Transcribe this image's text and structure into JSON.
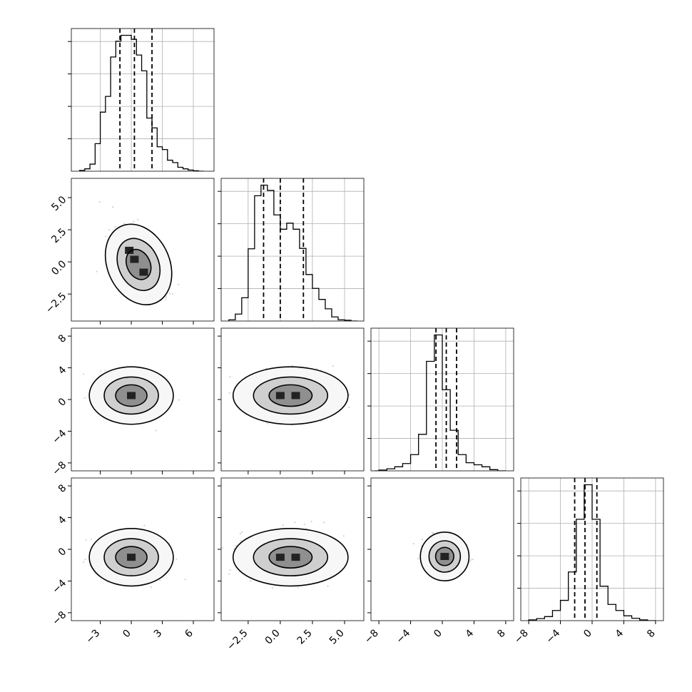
{
  "chart_data": {
    "type": "corner",
    "parameters": 4,
    "grid": true,
    "axes": [
      {
        "xlim": [
          -5.8,
          8.0
        ],
        "xticks": [
          -3,
          0,
          3,
          6
        ],
        "xtick_labels": [
          "−3",
          "0",
          "3",
          "6"
        ]
      },
      {
        "xlim": [
          -4.6,
          6.5
        ],
        "xticks": [
          -2.5,
          0.0,
          2.5,
          5.0
        ],
        "xtick_labels": [
          "−2.5",
          "0.0",
          "2.5",
          "5.0"
        ]
      },
      {
        "xlim": [
          -9.0,
          9.0
        ],
        "xticks": [
          -8,
          -4,
          0,
          4,
          8
        ],
        "xtick_labels": [
          "−8",
          "−4",
          "0",
          "4",
          "8"
        ]
      },
      {
        "xlim": [
          -9.0,
          9.0
        ],
        "xticks": [
          -8,
          -4,
          0,
          4,
          8
        ],
        "xtick_labels": [
          "−8",
          "−4",
          "0",
          "4",
          "8"
        ]
      }
    ],
    "row_ytick_labels": {
      "1": {
        "ticks": [
          -2.5,
          0.0,
          2.5,
          5.0
        ],
        "labels": [
          "−2.5",
          "0.0",
          "2.5",
          "5.0"
        ]
      },
      "2": {
        "ticks": [
          -8,
          -4,
          0,
          4,
          8
        ],
        "labels": [
          "−8",
          "−4",
          "0",
          "4",
          "8"
        ]
      },
      "3": {
        "ticks": [
          -8,
          -4,
          0,
          4,
          8
        ],
        "labels": [
          "−8",
          "−4",
          "0",
          "4",
          "8"
        ]
      }
    },
    "marginals": [
      {
        "bin_edges": [
          -5.0,
          -4.5,
          -4.0,
          -3.5,
          -3.0,
          -2.5,
          -2.0,
          -1.5,
          -1.0,
          -0.5,
          0.0,
          0.5,
          1.0,
          1.5,
          2.0,
          2.5,
          3.0,
          3.5,
          4.0,
          4.5,
          5.0,
          5.5,
          6.0,
          6.5,
          7.0
        ],
        "counts": [
          2,
          6,
          18,
          70,
          150,
          190,
          290,
          330,
          345,
          345,
          335,
          295,
          255,
          135,
          110,
          62,
          55,
          28,
          22,
          10,
          6,
          3,
          1,
          0
        ],
        "quantiles": [
          -1.1,
          0.3,
          2.0
        ]
      },
      {
        "bin_edges": [
          -4.0,
          -3.5,
          -3.0,
          -2.5,
          -2.0,
          -1.5,
          -1.0,
          -0.5,
          0.0,
          0.5,
          1.0,
          1.5,
          2.0,
          2.5,
          3.0,
          3.5,
          4.0,
          4.5,
          5.0,
          5.5,
          6.0
        ],
        "counts": [
          3,
          17,
          57,
          177,
          307,
          333,
          320,
          260,
          225,
          240,
          225,
          178,
          114,
          80,
          53,
          30,
          10,
          3,
          2,
          0
        ],
        "quantiles": [
          -1.3,
          0.0,
          1.8
        ]
      },
      {
        "bin_edges": [
          -8.5,
          -8.0,
          -7.0,
          -6.0,
          -5.0,
          -4.0,
          -3.0,
          -2.0,
          -1.0,
          0.0,
          1.0,
          2.0,
          3.0,
          4.0,
          5.0,
          6.0,
          7.0,
          8.0
        ],
        "counts": [
          0,
          2,
          5,
          10,
          18,
          40,
          90,
          270,
          335,
          200,
          100,
          40,
          20,
          15,
          10,
          3,
          0
        ],
        "quantiles": [
          -0.8,
          0.5,
          1.8
        ]
      },
      {
        "bin_edges": [
          -8.0,
          -7.0,
          -6.0,
          -5.0,
          -4.0,
          -3.0,
          -2.0,
          -1.0,
          0.0,
          1.0,
          2.0,
          3.0,
          4.0,
          5.0,
          6.0,
          7.0,
          8.0
        ],
        "counts": [
          2,
          5,
          10,
          25,
          50,
          120,
          250,
          335,
          250,
          85,
          40,
          25,
          12,
          6,
          2,
          0
        ],
        "quantiles": [
          -2.2,
          -0.9,
          0.6
        ]
      }
    ],
    "joint": [
      {
        "row": 1,
        "col": 0,
        "ylim": [
          -4.6,
          6.5
        ]
      },
      {
        "row": 2,
        "col": 0,
        "ylim": [
          -9.0,
          9.0
        ]
      },
      {
        "row": 2,
        "col": 1,
        "ylim": [
          -9.0,
          9.0
        ]
      },
      {
        "row": 3,
        "col": 0,
        "ylim": [
          -9.0,
          9.0
        ]
      },
      {
        "row": 3,
        "col": 1,
        "ylim": [
          -9.0,
          9.0
        ]
      },
      {
        "row": 3,
        "col": 2,
        "ylim": [
          -9.0,
          9.0
        ]
      }
    ]
  },
  "colors": {
    "ink": "#000000",
    "grid": "#b0b0b0",
    "scatter": "#9a9a9a"
  }
}
